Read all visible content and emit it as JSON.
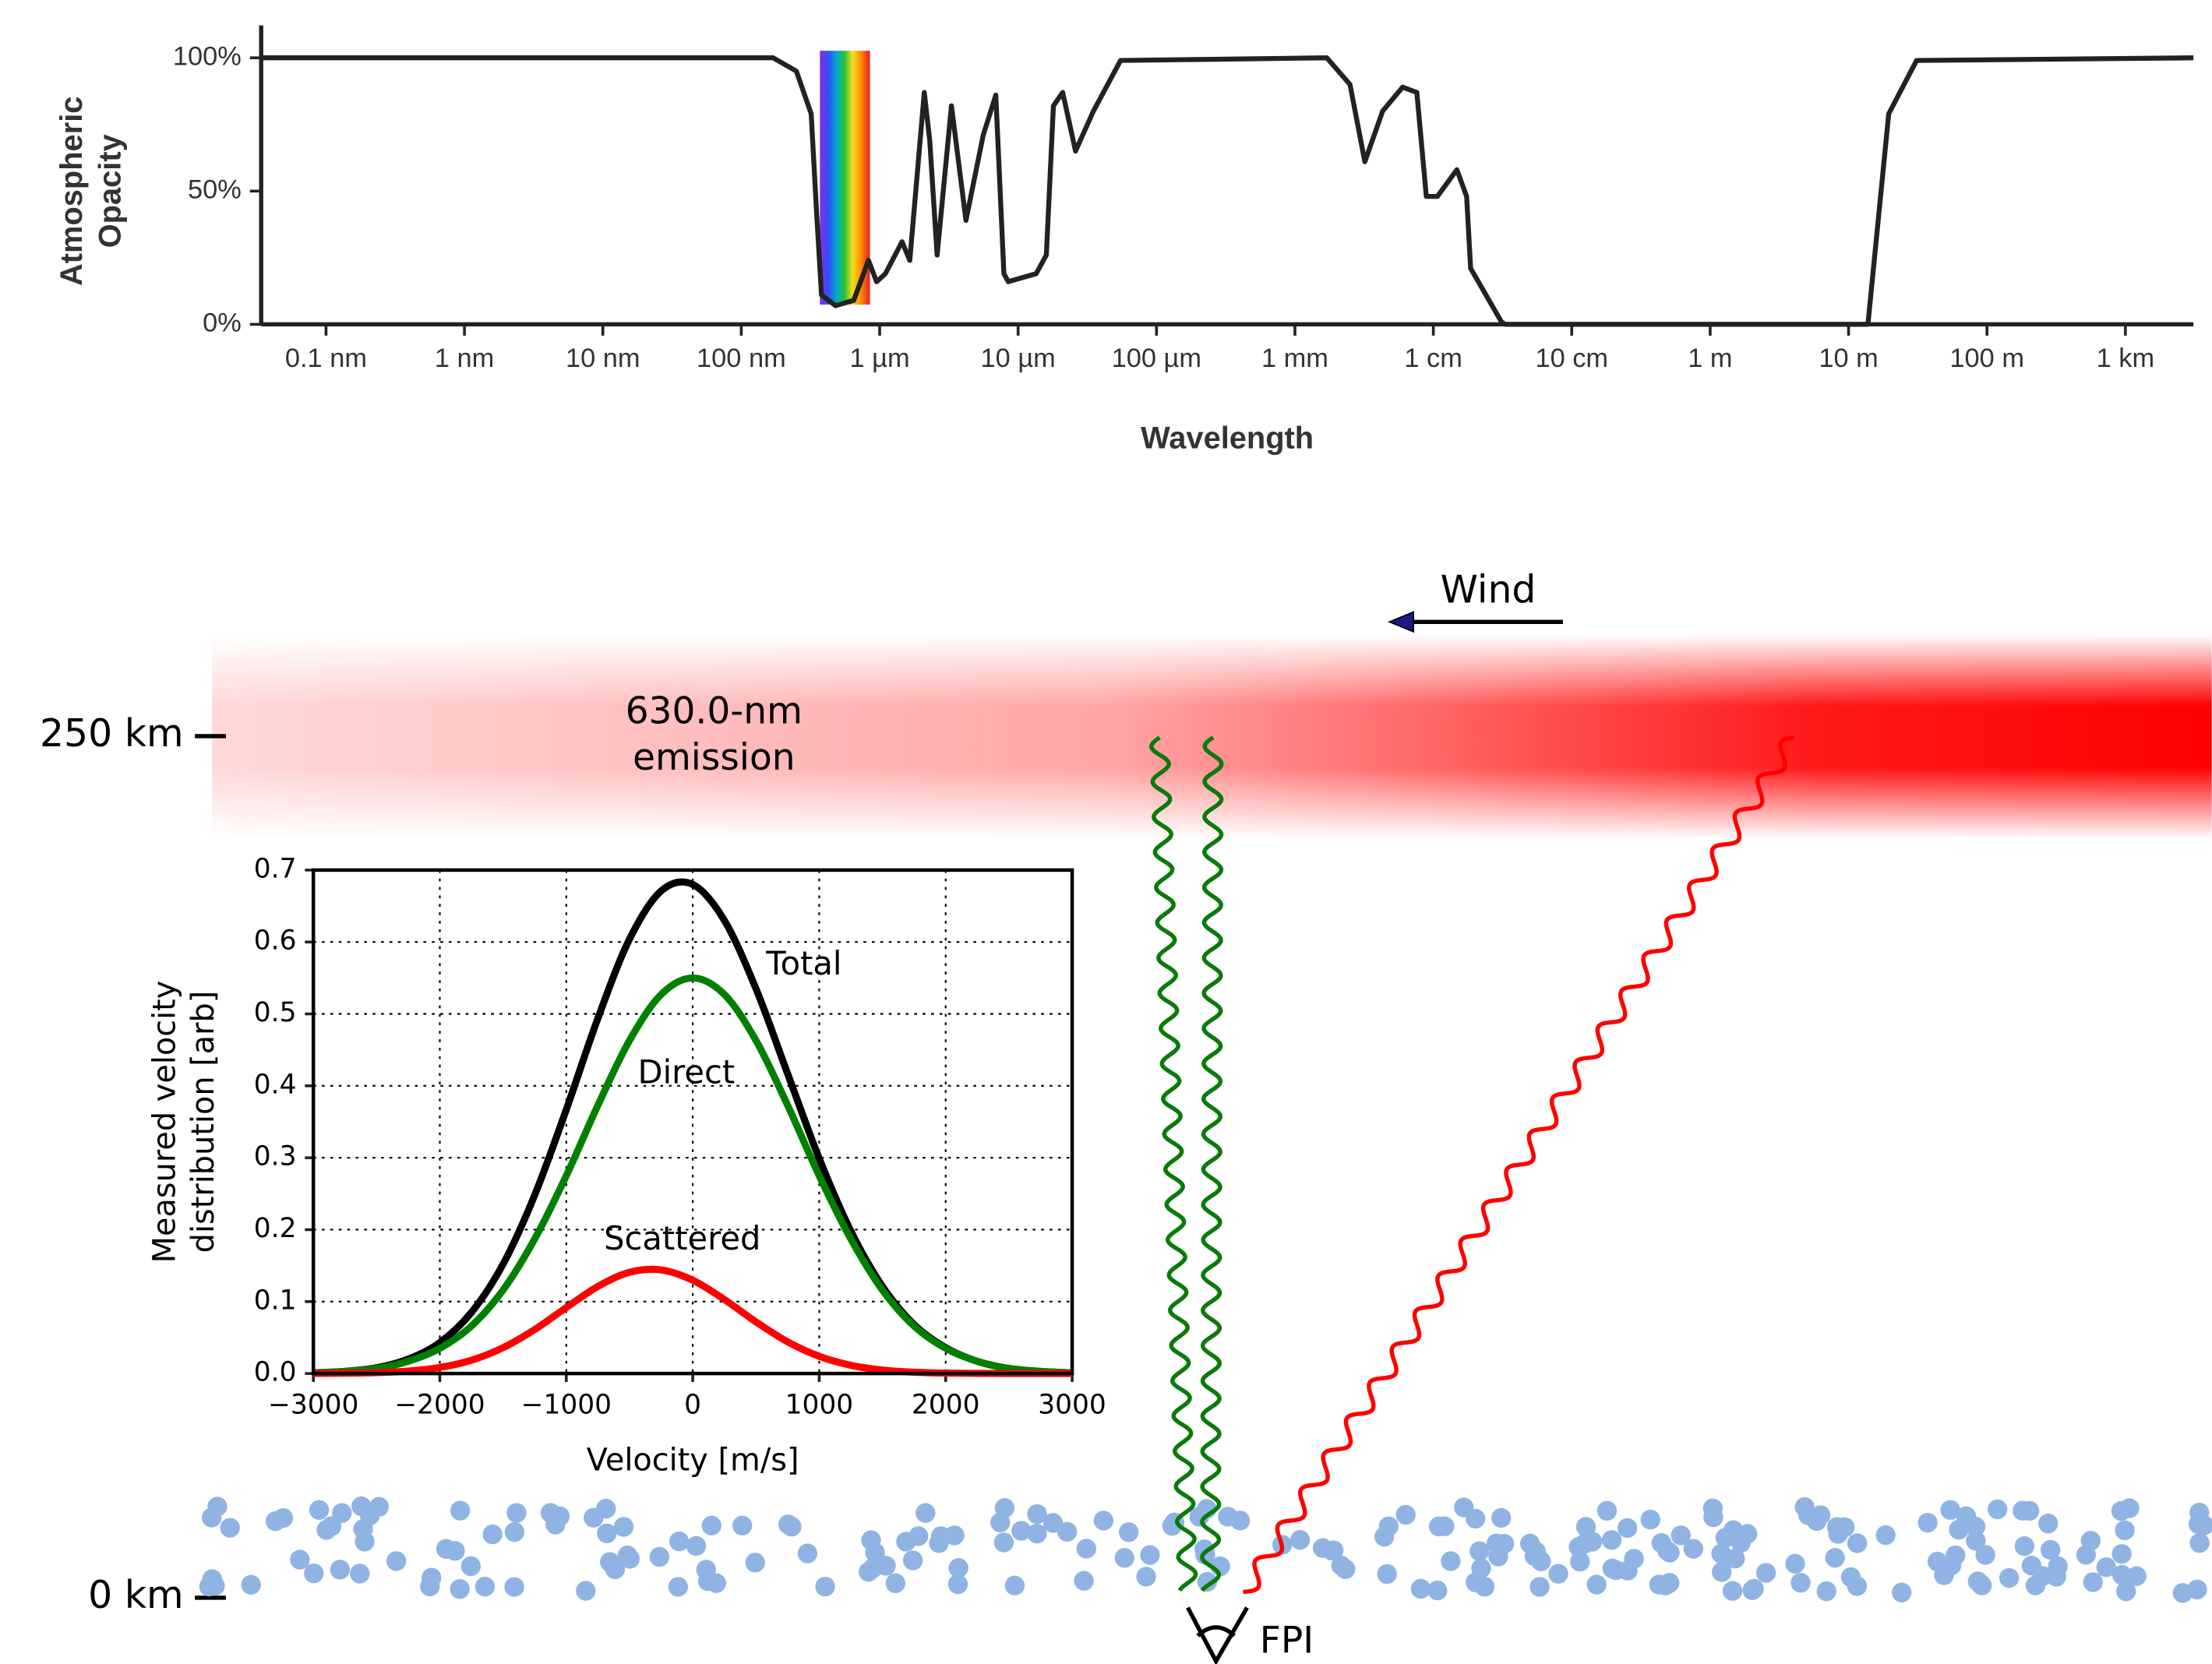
{
  "chart_data": [
    {
      "type": "line",
      "xscale": "log",
      "xlabel": "Wavelength",
      "ylabel": [
        "Atmospheric",
        "Opacity"
      ],
      "xlim": [
        3.4e-11,
        3100
      ],
      "ylim": [
        0,
        100
      ],
      "xticks": [
        {
          "value": 1e-10,
          "label": "0.1 nm"
        },
        {
          "value": 1e-09,
          "label": "1 nm"
        },
        {
          "value": 1e-08,
          "label": "10 nm"
        },
        {
          "value": 1e-07,
          "label": "100 nm"
        },
        {
          "value": 1e-06,
          "label": "1 µm"
        },
        {
          "value": 1e-05,
          "label": "10 µm"
        },
        {
          "value": 0.0001,
          "label": "100 µm"
        },
        {
          "value": 0.001,
          "label": "1 mm"
        },
        {
          "value": 0.01,
          "label": "1 cm"
        },
        {
          "value": 0.1,
          "label": "10 cm"
        },
        {
          "value": 1,
          "label": "1 m"
        },
        {
          "value": 10,
          "label": "10 m"
        },
        {
          "value": 100,
          "label": "100 m"
        },
        {
          "value": 1000,
          "label": "1 km"
        }
      ],
      "yticks": [
        {
          "value": 0,
          "label": "0%"
        },
        {
          "value": 50,
          "label": "50%"
        },
        {
          "value": 100,
          "label": "100%"
        }
      ],
      "color": "#222222",
      "visible_band": [
        3.7e-07,
        8.5e-07
      ],
      "x": [
        3.4e-11,
        1.7e-07,
        2.5e-07,
        3.2e-07,
        3.5e-07,
        3.8e-07,
        4.8e-07,
        6.5e-07,
        8.3e-07,
        9.5e-07,
        1.1e-06,
        1.45e-06,
        1.65e-06,
        2.1e-06,
        2.3e-06,
        2.6e-06,
        3.3e-06,
        4.2e-06,
        5.6e-06,
        6.9e-06,
        7.9e-06,
        8.5e-06,
        1.35e-05,
        1.6e-05,
        1.8e-05,
        2.1e-05,
        2.6e-05,
        3.5e-05,
        5.5e-05,
        0.0017,
        0.0025,
        0.0032,
        0.0043,
        0.006,
        0.0076,
        0.0089,
        0.0107,
        0.0148,
        0.0174,
        0.0186,
        0.031,
        0.033,
        13.8,
        19.5,
        31,
        3100
      ],
      "values": [
        100,
        100,
        95,
        79,
        42,
        11,
        7,
        9,
        24,
        16,
        19,
        31,
        24,
        87,
        69,
        26,
        82,
        39,
        71,
        86,
        19,
        16,
        19,
        26,
        82,
        87,
        65,
        80,
        99,
        100,
        90,
        61,
        80,
        89,
        87,
        48,
        48,
        58,
        48,
        21,
        1,
        0,
        0,
        79,
        99,
        100
      ]
    },
    {
      "type": "line",
      "xlabel": "Velocity [m/s]",
      "ylabel": [
        "Measured velocity",
        "distribution [arb]"
      ],
      "xlim": [
        -3000,
        3000
      ],
      "ylim": [
        0,
        0.7
      ],
      "grid": true,
      "xticks": [
        {
          "value": -3000,
          "label": "−3000"
        },
        {
          "value": -2000,
          "label": "−2000"
        },
        {
          "value": -1000,
          "label": "−1000"
        },
        0,
        1000,
        2000,
        3000
      ],
      "yticks": [
        {
          "value": 0,
          "label": "0.0"
        },
        0.1,
        0.2,
        0.3,
        0.4,
        0.5,
        0.6,
        0.7
      ],
      "x": [
        -3000,
        -2750,
        -2500,
        -2250,
        -2000,
        -1750,
        -1500,
        -1250,
        -1000,
        -750,
        -500,
        -250,
        0,
        250,
        500,
        750,
        1000,
        1250,
        1500,
        1750,
        2000,
        2250,
        2500,
        2750,
        3000
      ],
      "series": [
        {
          "name": "Total",
          "color": "#000000",
          "values": [
            0.001,
            0.003,
            0.008,
            0.02,
            0.043,
            0.085,
            0.152,
            0.248,
            0.367,
            0.494,
            0.604,
            0.671,
            0.68,
            0.63,
            0.535,
            0.417,
            0.299,
            0.198,
            0.121,
            0.068,
            0.036,
            0.017,
            0.007,
            0.003,
            0.001
          ]
        },
        {
          "name": "Direct",
          "color": "#008000",
          "values": [
            0.001,
            0.003,
            0.007,
            0.017,
            0.035,
            0.066,
            0.116,
            0.187,
            0.275,
            0.373,
            0.463,
            0.527,
            0.55,
            0.527,
            0.463,
            0.373,
            0.275,
            0.187,
            0.116,
            0.066,
            0.035,
            0.017,
            0.007,
            0.003,
            0.001
          ]
        },
        {
          "name": "Scattered",
          "color": "#ff0000",
          "values": [
            0.0001,
            0.0004,
            0.0012,
            0.0034,
            0.0084,
            0.0185,
            0.0359,
            0.0611,
            0.0917,
            0.1211,
            0.1408,
            0.1441,
            0.1297,
            0.1029,
            0.0718,
            0.0441,
            0.0239,
            0.0114,
            0.0048,
            0.0018,
            0.0006,
            0.0002,
            0,
            0,
            0
          ]
        }
      ]
    }
  ],
  "diagram": {
    "wind": "Wind",
    "emission": [
      "630.0-nm",
      "emission"
    ],
    "altitudes": [
      "250 km",
      "0 km"
    ],
    "instrument": "FPI"
  }
}
